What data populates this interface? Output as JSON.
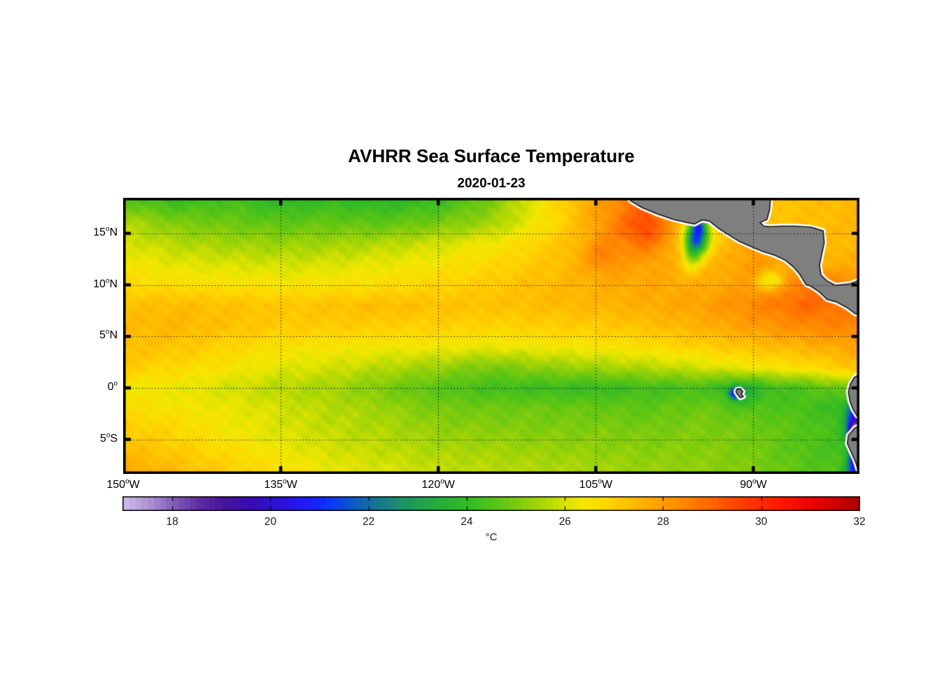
{
  "figure": {
    "title": "AVHRR Sea Surface Temperature",
    "subtitle": "2020-01-23"
  },
  "chart_data": {
    "type": "heatmap",
    "title": "AVHRR Sea Surface Temperature",
    "subtitle": "2020-01-23",
    "xlabel": "",
    "ylabel": "",
    "grid": "dotted",
    "degree_symbol": "o",
    "lon_range": [
      -150,
      -79.9
    ],
    "lat_range": [
      18.45,
      -8.35
    ],
    "x_ticks": [
      {
        "value": -150,
        "num": "150",
        "hemi": "W"
      },
      {
        "value": -135,
        "num": "135",
        "hemi": "W"
      },
      {
        "value": -120,
        "num": "120",
        "hemi": "W"
      },
      {
        "value": -105,
        "num": "105",
        "hemi": "W"
      },
      {
        "value": -90,
        "num": "90",
        "hemi": "W"
      }
    ],
    "y_ticks": [
      {
        "value": 15,
        "num": "15",
        "hemi": "N"
      },
      {
        "value": 10,
        "num": "10",
        "hemi": "N"
      },
      {
        "value": 5,
        "num": "5",
        "hemi": "N"
      },
      {
        "value": 0,
        "num": "0",
        "hemi": ""
      },
      {
        "value": -5,
        "num": "5",
        "hemi": "S"
      }
    ],
    "sst_grid": {
      "units": "degC",
      "lons": [
        -150,
        -145,
        -140,
        -135,
        -130,
        -125,
        -120,
        -115,
        -110,
        -105,
        -100,
        -95,
        -90,
        -85,
        -80
      ],
      "lats": [
        18.45,
        16,
        14,
        12,
        10,
        8,
        6,
        4,
        2,
        0,
        -2,
        -4,
        -6,
        -8.35
      ],
      "values_c": [
        [
          24.4,
          23.9,
          24.2,
          23.7,
          23.9,
          23.7,
          23.9,
          24.8,
          26.4,
          27.8,
          28.8,
          27.5,
          27.0,
          27.2,
          27.4
        ],
        [
          25.6,
          25.0,
          24.8,
          24.6,
          24.7,
          24.6,
          24.9,
          25.4,
          26.4,
          27.7,
          28.6,
          26.5,
          27.2,
          27.2,
          27.4
        ],
        [
          26.0,
          25.6,
          25.4,
          25.3,
          25.4,
          25.6,
          25.9,
          26.3,
          26.9,
          27.6,
          28.2,
          26.8,
          27.8,
          27.3,
          27.4
        ],
        [
          26.4,
          26.1,
          26.0,
          25.9,
          26.0,
          26.2,
          26.4,
          26.7,
          27.1,
          27.6,
          27.8,
          27.2,
          28.0,
          27.6,
          27.5
        ],
        [
          26.7,
          26.6,
          26.5,
          26.4,
          26.5,
          26.6,
          26.8,
          27.0,
          27.3,
          27.5,
          27.7,
          27.6,
          27.9,
          28.6,
          28.2
        ],
        [
          27.2,
          27.3,
          27.2,
          27.1,
          27.2,
          27.3,
          27.2,
          27.2,
          27.3,
          27.4,
          27.6,
          27.8,
          28.3,
          28.9,
          28.5
        ],
        [
          27.3,
          27.4,
          27.2,
          27.0,
          27.0,
          26.9,
          26.9,
          26.8,
          26.9,
          27.0,
          27.2,
          27.5,
          27.9,
          28.3,
          28.4
        ],
        [
          27.3,
          27.1,
          26.8,
          26.5,
          26.4,
          26.3,
          26.3,
          26.2,
          26.3,
          26.4,
          26.6,
          26.9,
          27.2,
          27.5,
          27.8
        ],
        [
          27.0,
          26.7,
          26.4,
          26.1,
          25.9,
          25.6,
          25.3,
          24.9,
          25.2,
          25.4,
          25.6,
          25.9,
          26.3,
          26.6,
          27.2
        ],
        [
          26.4,
          26.2,
          25.9,
          25.6,
          25.4,
          24.9,
          24.5,
          24.2,
          24.1,
          24.0,
          24.2,
          24.3,
          24.0,
          24.4,
          25.0
        ],
        [
          26.6,
          26.4,
          26.2,
          25.9,
          25.6,
          25.3,
          24.9,
          24.8,
          24.8,
          24.7,
          24.6,
          24.8,
          24.5,
          24.3,
          23.8
        ],
        [
          27.0,
          26.7,
          26.3,
          26.0,
          25.7,
          25.5,
          25.2,
          25.1,
          25.0,
          25.0,
          24.9,
          25.0,
          24.8,
          24.5,
          24.0
        ],
        [
          27.3,
          27.0,
          26.6,
          26.2,
          25.9,
          25.7,
          25.5,
          25.4,
          25.3,
          25.2,
          25.1,
          25.1,
          24.9,
          24.4,
          24.2
        ],
        [
          27.7,
          27.4,
          27.0,
          26.6,
          26.2,
          26.0,
          25.8,
          25.7,
          25.6,
          25.5,
          25.3,
          25.2,
          25.0,
          24.6,
          24.3
        ]
      ]
    },
    "anomaly_spots": [
      [
        -95.35,
        14.6,
        -5.2,
        0.75,
        1.05
      ],
      [
        -95.2,
        15.75,
        -2.8,
        0.5,
        0.55
      ],
      [
        -95.9,
        13.0,
        -1.8,
        0.6,
        1.1
      ],
      [
        -100.6,
        15.4,
        0.9,
        2.0,
        1.4
      ],
      [
        -104.3,
        12.9,
        0.7,
        1.3,
        1.2
      ],
      [
        -88.3,
        10.4,
        -1.8,
        0.95,
        0.7
      ],
      [
        -91.75,
        -0.5,
        -3.4,
        0.38,
        0.38
      ],
      [
        -91.2,
        -0.5,
        -0.8,
        1.1,
        0.9
      ],
      [
        -80.5,
        -2.2,
        -1.5,
        0.6,
        0.7
      ],
      [
        -80.2,
        -3.6,
        -4.0,
        0.6,
        0.9
      ],
      [
        -80.3,
        -4.6,
        -3.0,
        0.5,
        0.7
      ],
      [
        -80.15,
        -6.1,
        -5.0,
        0.5,
        1.3
      ],
      [
        -80.4,
        -8.0,
        -2.2,
        0.6,
        0.8
      ]
    ],
    "land": {
      "fill": "#7f7f7f",
      "outline": "#161616",
      "fringe": "#ffffff",
      "polygons": {
        "central_america": [
          [
            -102.6,
            19.2
          ],
          [
            -101.6,
            18.1
          ],
          [
            -100.6,
            17.5
          ],
          [
            -99.2,
            16.9
          ],
          [
            -97.6,
            16.35
          ],
          [
            -96.3,
            16.05
          ],
          [
            -95.6,
            15.9
          ],
          [
            -94.9,
            16.3
          ],
          [
            -94.2,
            16.2
          ],
          [
            -93.4,
            15.55
          ],
          [
            -92.5,
            14.95
          ],
          [
            -91.4,
            14.25
          ],
          [
            -90.3,
            13.75
          ],
          [
            -89.1,
            13.25
          ],
          [
            -87.9,
            12.85
          ],
          [
            -86.9,
            12.35
          ],
          [
            -86.1,
            11.65
          ],
          [
            -85.6,
            11.05
          ],
          [
            -85.3,
            10.55
          ],
          [
            -85.0,
            10.05
          ],
          [
            -84.5,
            9.85
          ],
          [
            -83.7,
            9.3
          ],
          [
            -83.0,
            8.6
          ],
          [
            -82.1,
            8.35
          ],
          [
            -81.1,
            7.8
          ],
          [
            -80.3,
            7.2
          ],
          [
            -79.3,
            6.9
          ],
          [
            -79.3,
            10.7
          ],
          [
            -80.8,
            10.1
          ],
          [
            -82.2,
            9.95
          ],
          [
            -83.0,
            10.4
          ],
          [
            -83.55,
            10.95
          ],
          [
            -83.7,
            11.9
          ],
          [
            -83.5,
            12.9
          ],
          [
            -83.25,
            14.1
          ],
          [
            -83.35,
            15.25
          ],
          [
            -84.5,
            15.6
          ],
          [
            -86.0,
            15.7
          ],
          [
            -87.3,
            15.7
          ],
          [
            -88.4,
            15.65
          ],
          [
            -89.0,
            15.7
          ],
          [
            -89.35,
            16.05
          ],
          [
            -88.7,
            16.35
          ],
          [
            -88.45,
            17.3
          ],
          [
            -88.3,
            19.2
          ]
        ],
        "south_america": [
          [
            -79.4,
            1.6
          ],
          [
            -80.4,
            1.0
          ],
          [
            -80.75,
            0.4
          ],
          [
            -80.95,
            -0.4
          ],
          [
            -80.8,
            -1.3
          ],
          [
            -80.5,
            -2.1
          ],
          [
            -80.1,
            -2.75
          ],
          [
            -79.5,
            -3.1
          ],
          [
            -79.6,
            -3.5
          ],
          [
            -80.35,
            -3.9
          ],
          [
            -80.95,
            -4.6
          ],
          [
            -81.05,
            -5.4
          ],
          [
            -80.7,
            -6.2
          ],
          [
            -80.3,
            -7.1
          ],
          [
            -80.05,
            -7.9
          ],
          [
            -79.7,
            -8.6
          ],
          [
            -79.3,
            -8.6
          ]
        ],
        "galapagos": [
          [
            -91.6,
            -0.15
          ],
          [
            -91.25,
            -0.1
          ],
          [
            -91.0,
            -0.35
          ],
          [
            -91.15,
            -0.6
          ],
          [
            -90.95,
            -0.85
          ],
          [
            -91.25,
            -0.95
          ],
          [
            -91.5,
            -0.65
          ],
          [
            -91.65,
            -0.4
          ]
        ]
      }
    },
    "colorbar": {
      "min": 17,
      "max": 32,
      "step": 0.125,
      "ticks": [
        18,
        20,
        22,
        24,
        26,
        28,
        30,
        32
      ],
      "unit": "°C",
      "stops": [
        [
          17,
          "#c9b8e8"
        ],
        [
          17.5,
          "#a98fd1"
        ],
        [
          18,
          "#8257b5"
        ],
        [
          18.5,
          "#5e2ba2"
        ],
        [
          19,
          "#47149e"
        ],
        [
          19.5,
          "#3a0bb0"
        ],
        [
          20,
          "#2f10cf"
        ],
        [
          20.5,
          "#2416ec"
        ],
        [
          21,
          "#0f2cff"
        ],
        [
          21.5,
          "#0b4fd6"
        ],
        [
          22,
          "#15719b"
        ],
        [
          22.5,
          "#1b8a71"
        ],
        [
          23,
          "#1fa14c"
        ],
        [
          23.5,
          "#27b134"
        ],
        [
          24,
          "#35bb24"
        ],
        [
          24.5,
          "#55c417"
        ],
        [
          25,
          "#7fcc0d"
        ],
        [
          25.5,
          "#abd706"
        ],
        [
          26,
          "#dce300"
        ],
        [
          26.3,
          "#f4e800"
        ],
        [
          26.8,
          "#ffd500"
        ],
        [
          27.3,
          "#ffbc00"
        ],
        [
          27.8,
          "#ffa200"
        ],
        [
          28.3,
          "#ff8a00"
        ],
        [
          28.8,
          "#ff6c00"
        ],
        [
          29.3,
          "#ff4d00"
        ],
        [
          29.8,
          "#ff3000"
        ],
        [
          30.3,
          "#ff1800"
        ],
        [
          30.8,
          "#f30700"
        ],
        [
          31.3,
          "#d80000"
        ],
        [
          31.7,
          "#bc0000"
        ],
        [
          32,
          "#a30000"
        ]
      ]
    }
  }
}
